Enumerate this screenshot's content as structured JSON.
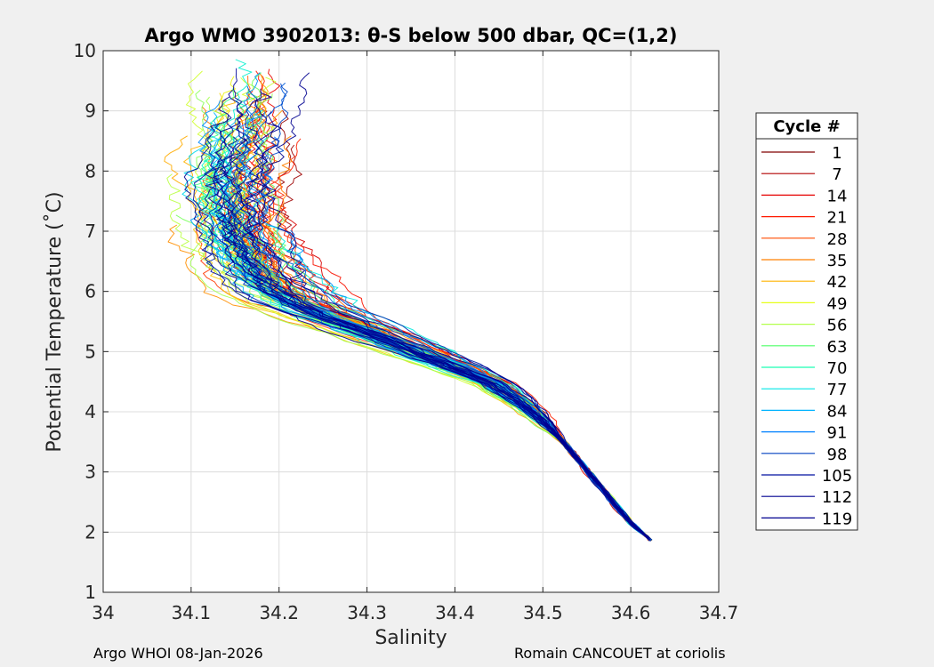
{
  "chart_data": {
    "type": "line",
    "title": "Argo WMO 3902013: θ-S below 500 dbar,  QC=(1,2)",
    "xlabel": "Salinity",
    "ylabel": "Potential Temperature (˚C)",
    "xlim": [
      34.0,
      34.7
    ],
    "ylim": [
      1,
      10
    ],
    "xticks": [
      "34",
      "34.1",
      "34.2",
      "34.3",
      "34.4",
      "34.5",
      "34.6",
      "34.7"
    ],
    "yticks": [
      "1",
      "2",
      "3",
      "4",
      "5",
      "6",
      "7",
      "8",
      "9",
      "10"
    ],
    "grid": true,
    "legend": {
      "title": "Cycle #",
      "placement": "outside-right",
      "entries": [
        "1",
        "7",
        "14",
        "21",
        "28",
        "35",
        "42",
        "49",
        "56",
        "63",
        "70",
        "77",
        "84",
        "91",
        "98",
        "105",
        "112",
        "119"
      ],
      "colors": [
        "#800000",
        "#b30000",
        "#e60000",
        "#ff1a00",
        "#ff4d00",
        "#ff8000",
        "#ffb300",
        "#e6ff1a",
        "#b3ff4d",
        "#4dff66",
        "#1affb3",
        "#00e6e6",
        "#00b3ff",
        "#0080ff",
        "#0040c0",
        "#0010a0",
        "#000090",
        "#00008f"
      ]
    },
    "reference_profile": {
      "salinity": [
        34.622,
        34.6,
        34.58,
        34.56,
        34.54,
        34.52,
        34.5,
        34.48,
        34.46,
        34.44,
        34.42,
        34.4,
        34.37,
        34.34,
        34.31,
        34.28,
        34.25,
        34.22,
        34.2,
        34.18,
        34.165,
        34.155,
        34.15,
        34.15,
        34.155,
        34.16,
        34.165,
        34.17
      ],
      "theta": [
        1.88,
        2.15,
        2.5,
        2.85,
        3.2,
        3.55,
        3.85,
        4.1,
        4.32,
        4.5,
        4.62,
        4.75,
        4.92,
        5.1,
        5.28,
        5.45,
        5.62,
        5.8,
        6.0,
        6.3,
        6.65,
        7.0,
        7.4,
        7.8,
        8.25,
        8.7,
        9.2,
        9.75
      ]
    },
    "series": [
      {
        "name": "1",
        "color": "#800000"
      },
      {
        "name": "7",
        "color": "#b30000"
      },
      {
        "name": "14",
        "color": "#e60000"
      },
      {
        "name": "21",
        "color": "#ff1a00"
      },
      {
        "name": "28",
        "color": "#ff4d00"
      },
      {
        "name": "35",
        "color": "#ff8000"
      },
      {
        "name": "42",
        "color": "#ffb300"
      },
      {
        "name": "49",
        "color": "#e6ff1a"
      },
      {
        "name": "56",
        "color": "#b3ff4d"
      },
      {
        "name": "63",
        "color": "#4dff66"
      },
      {
        "name": "70",
        "color": "#1affb3"
      },
      {
        "name": "77",
        "color": "#00e6e6"
      },
      {
        "name": "84",
        "color": "#00b3ff"
      },
      {
        "name": "91",
        "color": "#0080ff"
      },
      {
        "name": "98",
        "color": "#0040c0"
      },
      {
        "name": "105",
        "color": "#0010a0"
      },
      {
        "name": "112",
        "color": "#000090"
      },
      {
        "name": "119",
        "color": "#00008f"
      }
    ]
  },
  "footer": {
    "left": "Argo WHOI 08-Jan-2026",
    "right": "Romain CANCOUET at coriolis"
  }
}
